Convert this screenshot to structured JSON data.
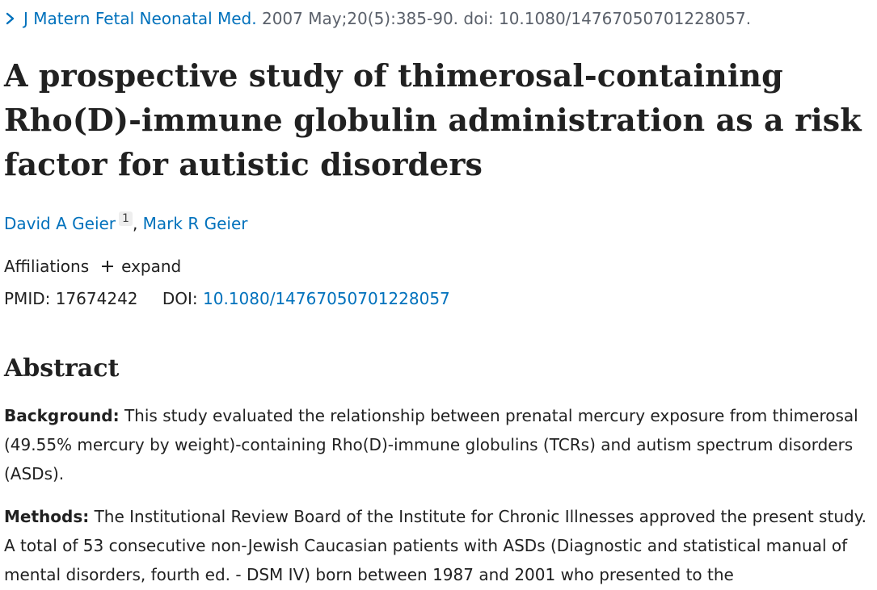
{
  "citation": {
    "journal": "J Matern Fetal Neonatal Med.",
    "details": "2007 May;20(5):385-90. doi: 10.1080/14767050701228057."
  },
  "article": {
    "title": "A prospective study of thimerosal-containing Rho(D)-immune globulin administration as a risk factor for autistic disorders"
  },
  "authors": [
    {
      "name": "David A Geier",
      "affiliation_ref": "1"
    },
    {
      "name": "Mark R Geier"
    }
  ],
  "author_separator": ",",
  "affiliations": {
    "label": "Affiliations",
    "expand_label": "expand"
  },
  "identifiers": {
    "pmid_label": "PMID:",
    "pmid": "17674242",
    "doi_label": "DOI:",
    "doi": "10.1080/14767050701228057"
  },
  "abstract": {
    "heading": "Abstract",
    "sections": [
      {
        "label": "Background:",
        "text": "This study evaluated the relationship between prenatal mercury exposure from thimerosal (49.55% mercury by weight)-containing Rho(D)-immune globulins (TCRs) and autism spectrum disorders (ASDs)."
      },
      {
        "label": "Methods:",
        "text": "The Institutional Review Board of the Institute for Chronic Illnesses approved the present study. A total of 53 consecutive non-Jewish Caucasian patients with ASDs (Diagnostic and statistical manual of mental disorders, fourth ed. - DSM IV) born between 1987 and 2001 who presented to the"
      }
    ]
  },
  "colors": {
    "link": "#0071bc",
    "text": "#212121",
    "muted": "#5b616b"
  },
  "icons": {
    "breadcrumb": "chevron-right-icon",
    "expand": "plus-icon"
  }
}
